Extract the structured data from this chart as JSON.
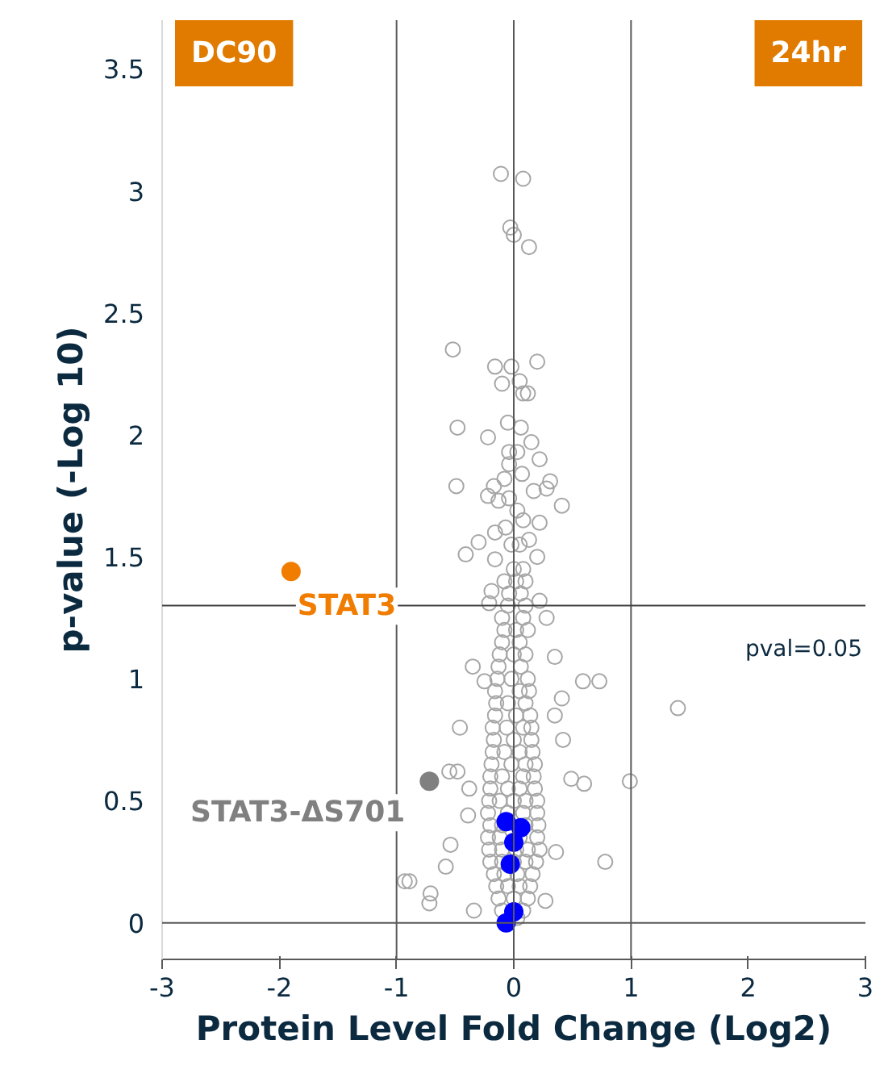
{
  "chart_data": {
    "type": "scatter",
    "xlabel": "Protein Level Fold Change (Log2)",
    "ylabel": "p-value (-Log 10)",
    "xlim": [
      -3,
      3
    ],
    "ylim": [
      -0.15,
      3.7
    ],
    "xticks": [
      -3,
      -2,
      -1,
      0,
      1,
      2,
      3
    ],
    "yticks": [
      0,
      0.5,
      1,
      1.5,
      2,
      2.5,
      3,
      3.5
    ],
    "grid": false,
    "legend": false,
    "marker": "circle",
    "annotations": [
      "DC90",
      "24hr",
      "pval=0.05"
    ],
    "ref_lines": [
      {
        "axis": "x",
        "value": -1,
        "label": null,
        "color": "#595959"
      },
      {
        "axis": "x",
        "value": 0,
        "label": null,
        "color": "#595959"
      },
      {
        "axis": "x",
        "value": 1,
        "label": null,
        "color": "#595959"
      },
      {
        "axis": "y",
        "value": 0,
        "label": null,
        "color": "#595959"
      },
      {
        "axis": "y",
        "value": 1.3,
        "label": null,
        "color": "#404040"
      }
    ],
    "series": [
      {
        "color": "#a6a6a6",
        "x": [
          0.03,
          -0.1,
          0.08,
          -0.13,
          0,
          0.12,
          -0.15,
          -0.05,
          0.05,
          0.14,
          -0.17,
          -0.08,
          0.03,
          0.16,
          -0.2,
          -0.1,
          0,
          0.1,
          0.19,
          -0.21,
          -0.1,
          0.02,
          0.12,
          0.22,
          -0.22,
          -0.12,
          0.05,
          0.2,
          -0.2,
          -0.1,
          0.1,
          0.21,
          -0.22,
          -0.05,
          0.08,
          0.2,
          -0.21,
          -0.12,
          0,
          0.1,
          0.2,
          -0.2,
          -0.05,
          0.05,
          0.18,
          -0.2,
          -0.1,
          0.08,
          0.17,
          -0.19,
          -0.02,
          0.1,
          0.18,
          -0.18,
          -0.08,
          0.05,
          0.16,
          -0.17,
          0,
          0.15,
          -0.18,
          -0.06,
          0.08,
          0.15,
          -0.16,
          0.02,
          0.14,
          -0.15,
          -0.05,
          0.1,
          -0.16,
          0.05,
          0.13,
          -0.14,
          -0.02,
          0.12,
          -0.13,
          0.06,
          -0.12,
          0,
          0.1,
          -0.1,
          0.05,
          -0.08,
          0.02,
          0.12,
          -0.1,
          0.08,
          -0.05,
          0.1,
          -0.04,
          0.06,
          -0.08,
          0.02,
          0.1,
          0,
          0.08,
          -0.02,
          0.05,
          -0.52,
          -0.16,
          -0.02,
          0.2,
          -0.1,
          0.05,
          0.08,
          0.12,
          -0.48,
          -0.05,
          0.06,
          -0.22,
          0.15,
          -0.04,
          0.03,
          0.22,
          -0.04,
          -0.49,
          0.07,
          0.31,
          0.28,
          0.17,
          -0.08,
          -0.17,
          -0.22,
          -0.13,
          -0.04,
          0.41,
          0.03,
          0.08,
          0.22,
          -0.3,
          -0.16,
          -0.07,
          -0.41,
          0.13,
          -0.16,
          0.2,
          -0.19,
          -0.21,
          0.22,
          0.28,
          -0.11,
          0.08,
          -0.03,
          0,
          0.13,
          -0.35,
          0.35,
          0.59,
          0.73,
          0.41,
          1.4,
          -0.46,
          -0.55,
          -0.48,
          0.99,
          0.6,
          0.49,
          -0.38,
          -0.39,
          -0.54,
          0.78,
          -0.89,
          -0.93,
          -0.71,
          -0.72,
          -0.58,
          0.27,
          -0.34,
          0.36,
          0.42,
          0.35,
          -0.25
        ],
        "values": [
          0.02,
          0.05,
          0.05,
          0.1,
          0.1,
          0.1,
          0.15,
          0.15,
          0.15,
          0.15,
          0.2,
          0.2,
          0.2,
          0.2,
          0.25,
          0.25,
          0.25,
          0.25,
          0.25,
          0.3,
          0.3,
          0.3,
          0.3,
          0.3,
          0.35,
          0.35,
          0.35,
          0.35,
          0.4,
          0.4,
          0.4,
          0.4,
          0.45,
          0.45,
          0.45,
          0.45,
          0.5,
          0.5,
          0.5,
          0.5,
          0.5,
          0.55,
          0.55,
          0.55,
          0.55,
          0.6,
          0.6,
          0.6,
          0.6,
          0.65,
          0.65,
          0.65,
          0.65,
          0.7,
          0.7,
          0.7,
          0.7,
          0.75,
          0.75,
          0.75,
          0.8,
          0.8,
          0.8,
          0.8,
          0.85,
          0.85,
          0.85,
          0.9,
          0.9,
          0.9,
          0.95,
          0.95,
          0.95,
          1.0,
          1.0,
          1.0,
          1.05,
          1.05,
          1.1,
          1.1,
          1.1,
          1.15,
          1.15,
          1.2,
          1.2,
          1.2,
          1.25,
          1.25,
          1.3,
          1.3,
          1.35,
          1.35,
          1.4,
          1.4,
          1.4,
          1.45,
          1.45,
          1.55,
          1.55,
          2.35,
          2.28,
          2.28,
          2.3,
          2.21,
          2.22,
          2.17,
          2.17,
          2.03,
          2.05,
          2.03,
          1.99,
          1.97,
          1.93,
          1.93,
          1.9,
          1.88,
          1.79,
          1.84,
          1.81,
          1.78,
          1.77,
          1.82,
          1.79,
          1.75,
          1.73,
          1.74,
          1.71,
          1.69,
          1.65,
          1.64,
          1.56,
          1.6,
          1.62,
          1.51,
          1.57,
          1.49,
          1.5,
          1.36,
          1.31,
          1.32,
          1.25,
          3.07,
          3.05,
          2.85,
          2.82,
          2.77,
          1.05,
          1.09,
          0.99,
          0.99,
          0.92,
          0.88,
          0.8,
          0.62,
          0.62,
          0.58,
          0.57,
          0.59,
          0.55,
          0.44,
          0.32,
          0.25,
          0.17,
          0.17,
          0.12,
          0.08,
          0.23,
          0.09,
          0.05,
          0.29,
          0.75,
          0.85,
          0.99
        ]
      },
      {
        "color": "#0000ff",
        "x": [
          -0.065,
          0.06,
          0.0,
          -0.03,
          0.0,
          -0.065
        ],
        "values": [
          0.415,
          0.39,
          0.33,
          0.24,
          0.045,
          0.0
        ]
      },
      {
        "name": "STAT3-ΔS701",
        "color": "#808080",
        "x": [
          -0.72
        ],
        "values": [
          0.58
        ]
      },
      {
        "name": "STAT3",
        "color": "#f07c00",
        "x": [
          -1.9
        ],
        "values": [
          1.44
        ]
      }
    ]
  }
}
